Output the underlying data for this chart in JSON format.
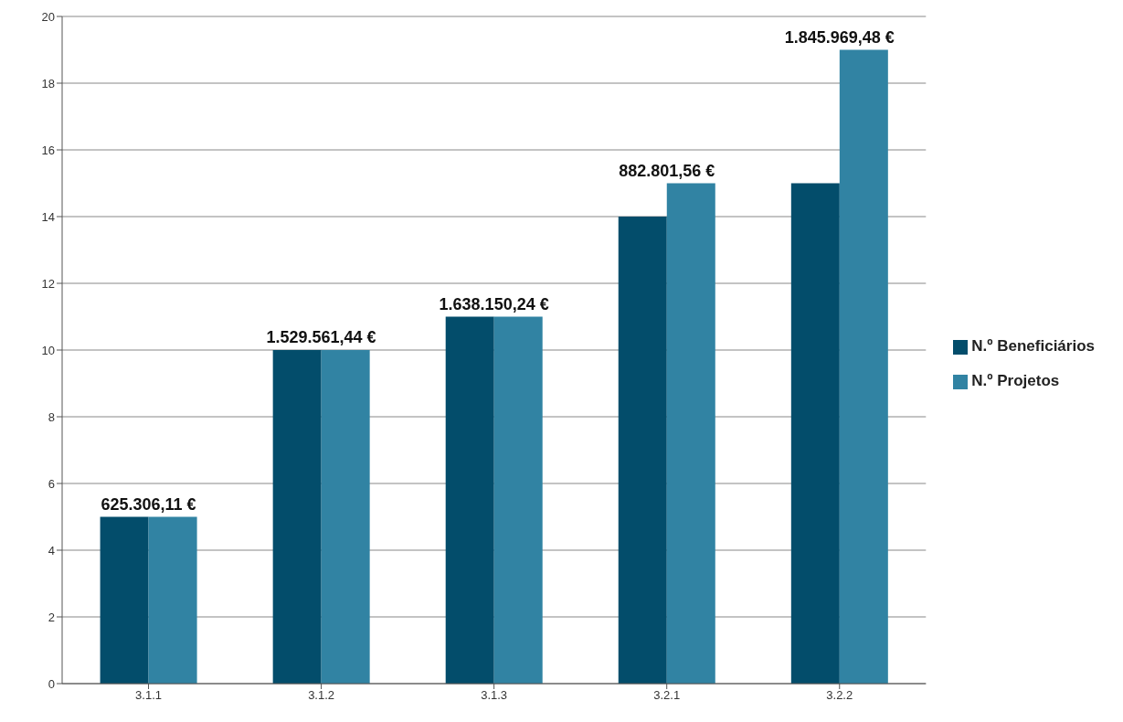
{
  "chart_data": {
    "type": "bar",
    "categories": [
      "3.1.1",
      "3.1.2",
      "3.1.3",
      "3.2.1",
      "3.2.2"
    ],
    "series": [
      {
        "name": "N.º Beneficiários",
        "color": "#034d6b",
        "values": [
          5,
          10,
          11,
          14,
          15
        ]
      },
      {
        "name": "N.º Projetos",
        "color": "#3183a3",
        "values": [
          5,
          10,
          11,
          15,
          19
        ]
      }
    ],
    "ylim": [
      0,
      20
    ],
    "yticks": [
      0,
      2,
      4,
      6,
      8,
      10,
      12,
      14,
      16,
      18,
      20
    ],
    "grid": "y",
    "legend": "right",
    "annotations": [
      "625.306,11 €",
      "1.529.561,44 €",
      "1.638.150,24 €",
      "882.801,56 €",
      "1.845.969,48 €"
    ]
  }
}
